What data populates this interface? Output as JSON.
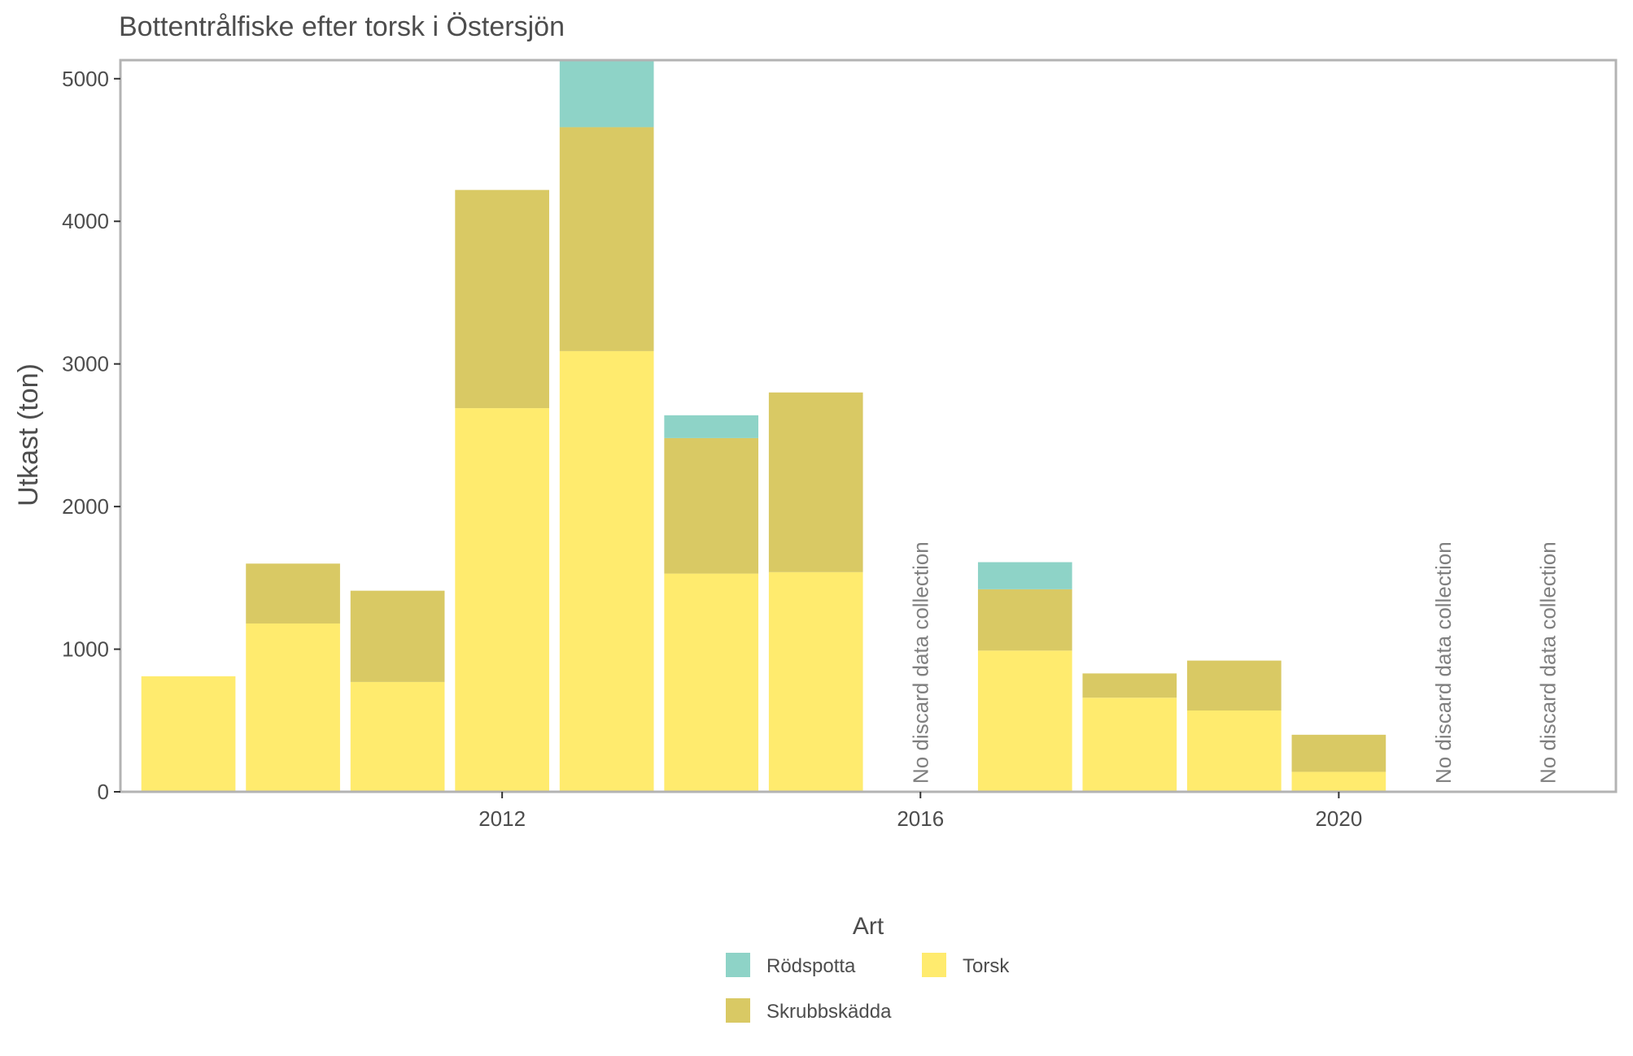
{
  "chart_data": {
    "type": "bar",
    "stacked": true,
    "title": "Bottentrålfiske efter torsk i Östersjön",
    "xlabel": "",
    "ylabel": "Utkast (ton)",
    "x": [
      2009,
      2010,
      2011,
      2012,
      2013,
      2014,
      2015,
      2016,
      2017,
      2018,
      2019,
      2020,
      2021,
      2022
    ],
    "x_ticks": [
      2012,
      2016,
      2020
    ],
    "x_range": [
      2008.35,
      2022.65
    ],
    "y_ticks": [
      0,
      1000,
      2000,
      3000,
      4000,
      5000
    ],
    "ylim": [
      0,
      5130
    ],
    "series": [
      {
        "name": "Torsk",
        "color": "#FFEB6E",
        "values": [
          810,
          1180,
          770,
          2690,
          3090,
          1530,
          1540,
          null,
          990,
          660,
          570,
          140,
          null,
          null
        ]
      },
      {
        "name": "Skrubbskädda",
        "color": "#D9C964",
        "values": [
          0,
          420,
          640,
          1530,
          1570,
          950,
          1260,
          null,
          430,
          170,
          350,
          260,
          null,
          null
        ]
      },
      {
        "name": "Rödspotta",
        "color": "#8ED3C7",
        "values": [
          0,
          0,
          0,
          0,
          470,
          160,
          0,
          null,
          190,
          0,
          0,
          0,
          null,
          null
        ]
      }
    ],
    "annotations": [
      {
        "x": 2016,
        "text": "No discard data collection"
      },
      {
        "x": 2021,
        "text": "No discard data collection"
      },
      {
        "x": 2022,
        "text": "No discard data collection"
      }
    ],
    "legend": {
      "title": "Art",
      "position": "bottom",
      "items": [
        {
          "label": "Rödspotta",
          "color": "#8ED3C7"
        },
        {
          "label": "Torsk",
          "color": "#FFEB6E"
        },
        {
          "label": "Skrubbskädda",
          "color": "#D9C964"
        }
      ]
    },
    "grid": false
  }
}
